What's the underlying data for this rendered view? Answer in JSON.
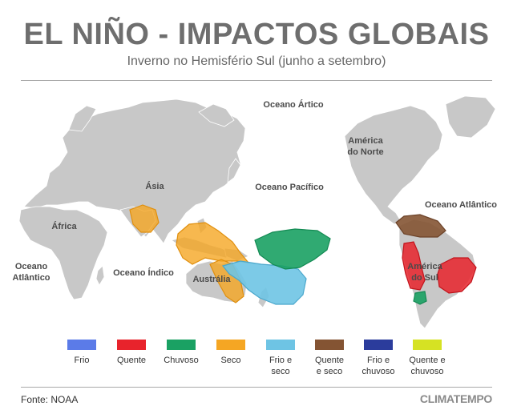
{
  "header": {
    "title": "EL NIÑO - IMPACTOS GLOBAIS",
    "subtitle": "Inverno no Hemisfério Sul (junho a setembro)"
  },
  "map": {
    "labels": {
      "arctic": "Oceano Ártico",
      "north_america_1": "América",
      "north_america_2": "do Norte",
      "asia": "Ásia",
      "pacific": "Oceano Pacífico",
      "atlantic_east": "Oceano Atlântico",
      "africa": "África",
      "atlantic_west_1": "Oceano",
      "atlantic_west_2": "Atlântico",
      "indian": "Oceano Índico",
      "australia": "Austrália",
      "south_america_1": "América",
      "south_america_2": "do Sul"
    },
    "colors": {
      "land": "#c8c8c8",
      "border": "#ffffff"
    }
  },
  "legend": {
    "items": [
      {
        "line1": "Frio",
        "line2": "",
        "color": "#5b7be8"
      },
      {
        "line1": "Quente",
        "line2": "",
        "color": "#e8232c"
      },
      {
        "line1": "Chuvoso",
        "line2": "",
        "color": "#1aa163"
      },
      {
        "line1": "Seco",
        "line2": "",
        "color": "#f5a623"
      },
      {
        "line1": "Frio e",
        "line2": "seco",
        "color": "#6ec4e4"
      },
      {
        "line1": "Quente",
        "line2": "e seco",
        "color": "#845433"
      },
      {
        "line1": "Frio e",
        "line2": "chuvoso",
        "color": "#2b3c9c"
      },
      {
        "line1": "Quente e",
        "line2": "chuvoso",
        "color": "#d6e223"
      }
    ]
  },
  "footer": {
    "source": "Fonte: NOAA",
    "brand": "CLIMATEMPO"
  }
}
